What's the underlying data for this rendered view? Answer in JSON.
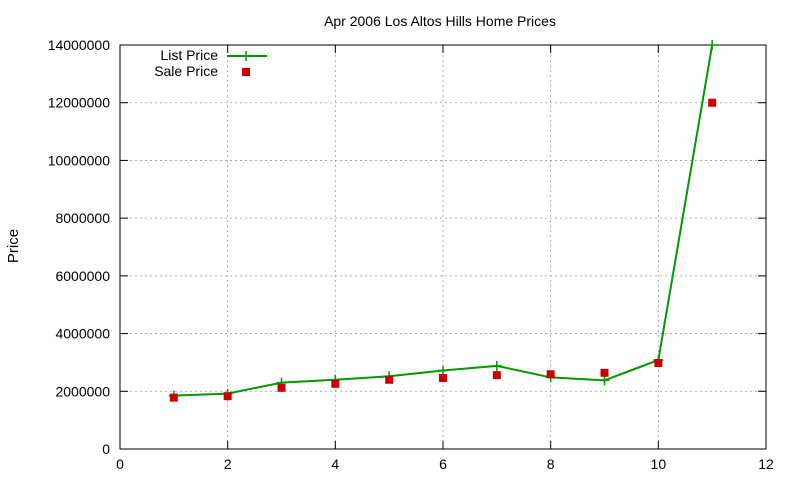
{
  "chart_data": {
    "type": "line",
    "title": "Apr 2006 Los Altos Hills Home Prices",
    "xlabel": "",
    "ylabel": "Price",
    "xlim": [
      0,
      12
    ],
    "ylim": [
      0,
      14000000
    ],
    "xticks": [
      0,
      2,
      4,
      6,
      8,
      10,
      12
    ],
    "yticks": [
      0,
      2000000,
      4000000,
      6000000,
      8000000,
      10000000,
      12000000,
      14000000
    ],
    "grid": true,
    "legend_position": "top-left",
    "series": [
      {
        "name": "List Price",
        "style": "line-points",
        "color": "#009900",
        "marker": "plus",
        "x": [
          1,
          2,
          3,
          4,
          5,
          6,
          7,
          8,
          9,
          10,
          11
        ],
        "y": [
          1850000,
          1920000,
          2300000,
          2400000,
          2520000,
          2720000,
          2880000,
          2480000,
          2380000,
          3080000,
          14000000
        ]
      },
      {
        "name": "Sale Price",
        "style": "points",
        "color": "#cc0000",
        "marker": "square",
        "x": [
          1,
          2,
          3,
          4,
          5,
          6,
          7,
          8,
          9,
          10,
          11
        ],
        "y": [
          1780000,
          1830000,
          2120000,
          2260000,
          2400000,
          2460000,
          2560000,
          2590000,
          2640000,
          2980000,
          12000000
        ]
      }
    ]
  }
}
